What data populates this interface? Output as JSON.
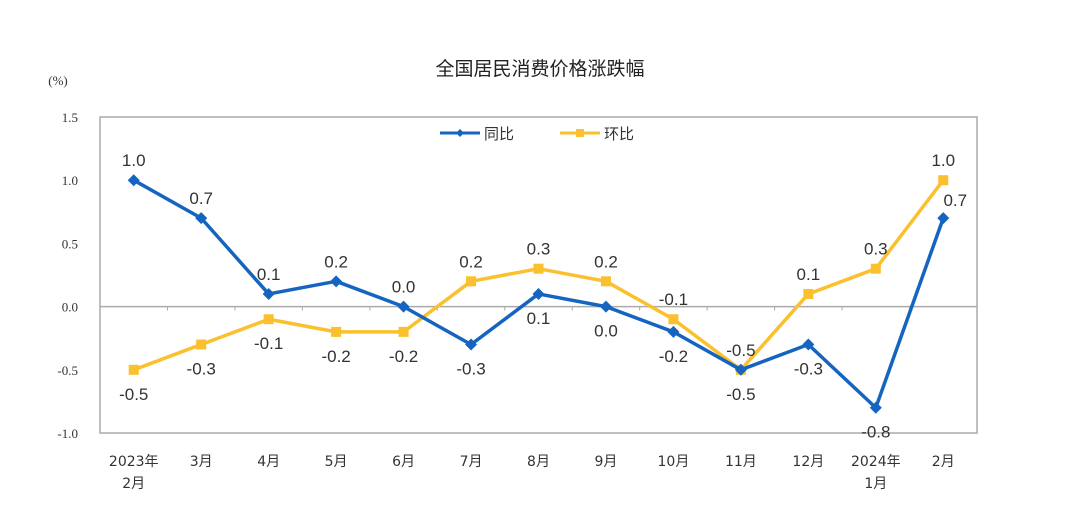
{
  "chart_data": {
    "type": "line",
    "title": "全国居民消费价格涨跌幅",
    "ylabel": "(%)",
    "xlabel": "",
    "categories": [
      [
        "2023年",
        "2月"
      ],
      [
        "3月"
      ],
      [
        "4月"
      ],
      [
        "5月"
      ],
      [
        "6月"
      ],
      [
        "7月"
      ],
      [
        "8月"
      ],
      [
        "9月"
      ],
      [
        "10月"
      ],
      [
        "11月"
      ],
      [
        "12月"
      ],
      [
        "2024年",
        "1月"
      ],
      [
        "2月"
      ]
    ],
    "ylim": [
      -1.0,
      1.5
    ],
    "yticks": [
      "1.5",
      "1.0",
      "0.5",
      "0.0",
      "-0.5",
      "-1.0"
    ],
    "grid": false,
    "legend_position": "top-center",
    "series": [
      {
        "name": "同比",
        "color": "#1565c0",
        "marker": "diamond",
        "values": [
          1.0,
          0.7,
          0.1,
          0.2,
          0.0,
          -0.3,
          0.1,
          0.0,
          -0.2,
          -0.5,
          -0.3,
          -0.8,
          0.7
        ]
      },
      {
        "name": "环比",
        "color": "#fbc02d",
        "marker": "square",
        "values": [
          -0.5,
          -0.3,
          -0.1,
          -0.2,
          -0.2,
          0.2,
          0.3,
          0.2,
          -0.1,
          -0.5,
          0.1,
          0.3,
          1.0
        ]
      }
    ]
  }
}
